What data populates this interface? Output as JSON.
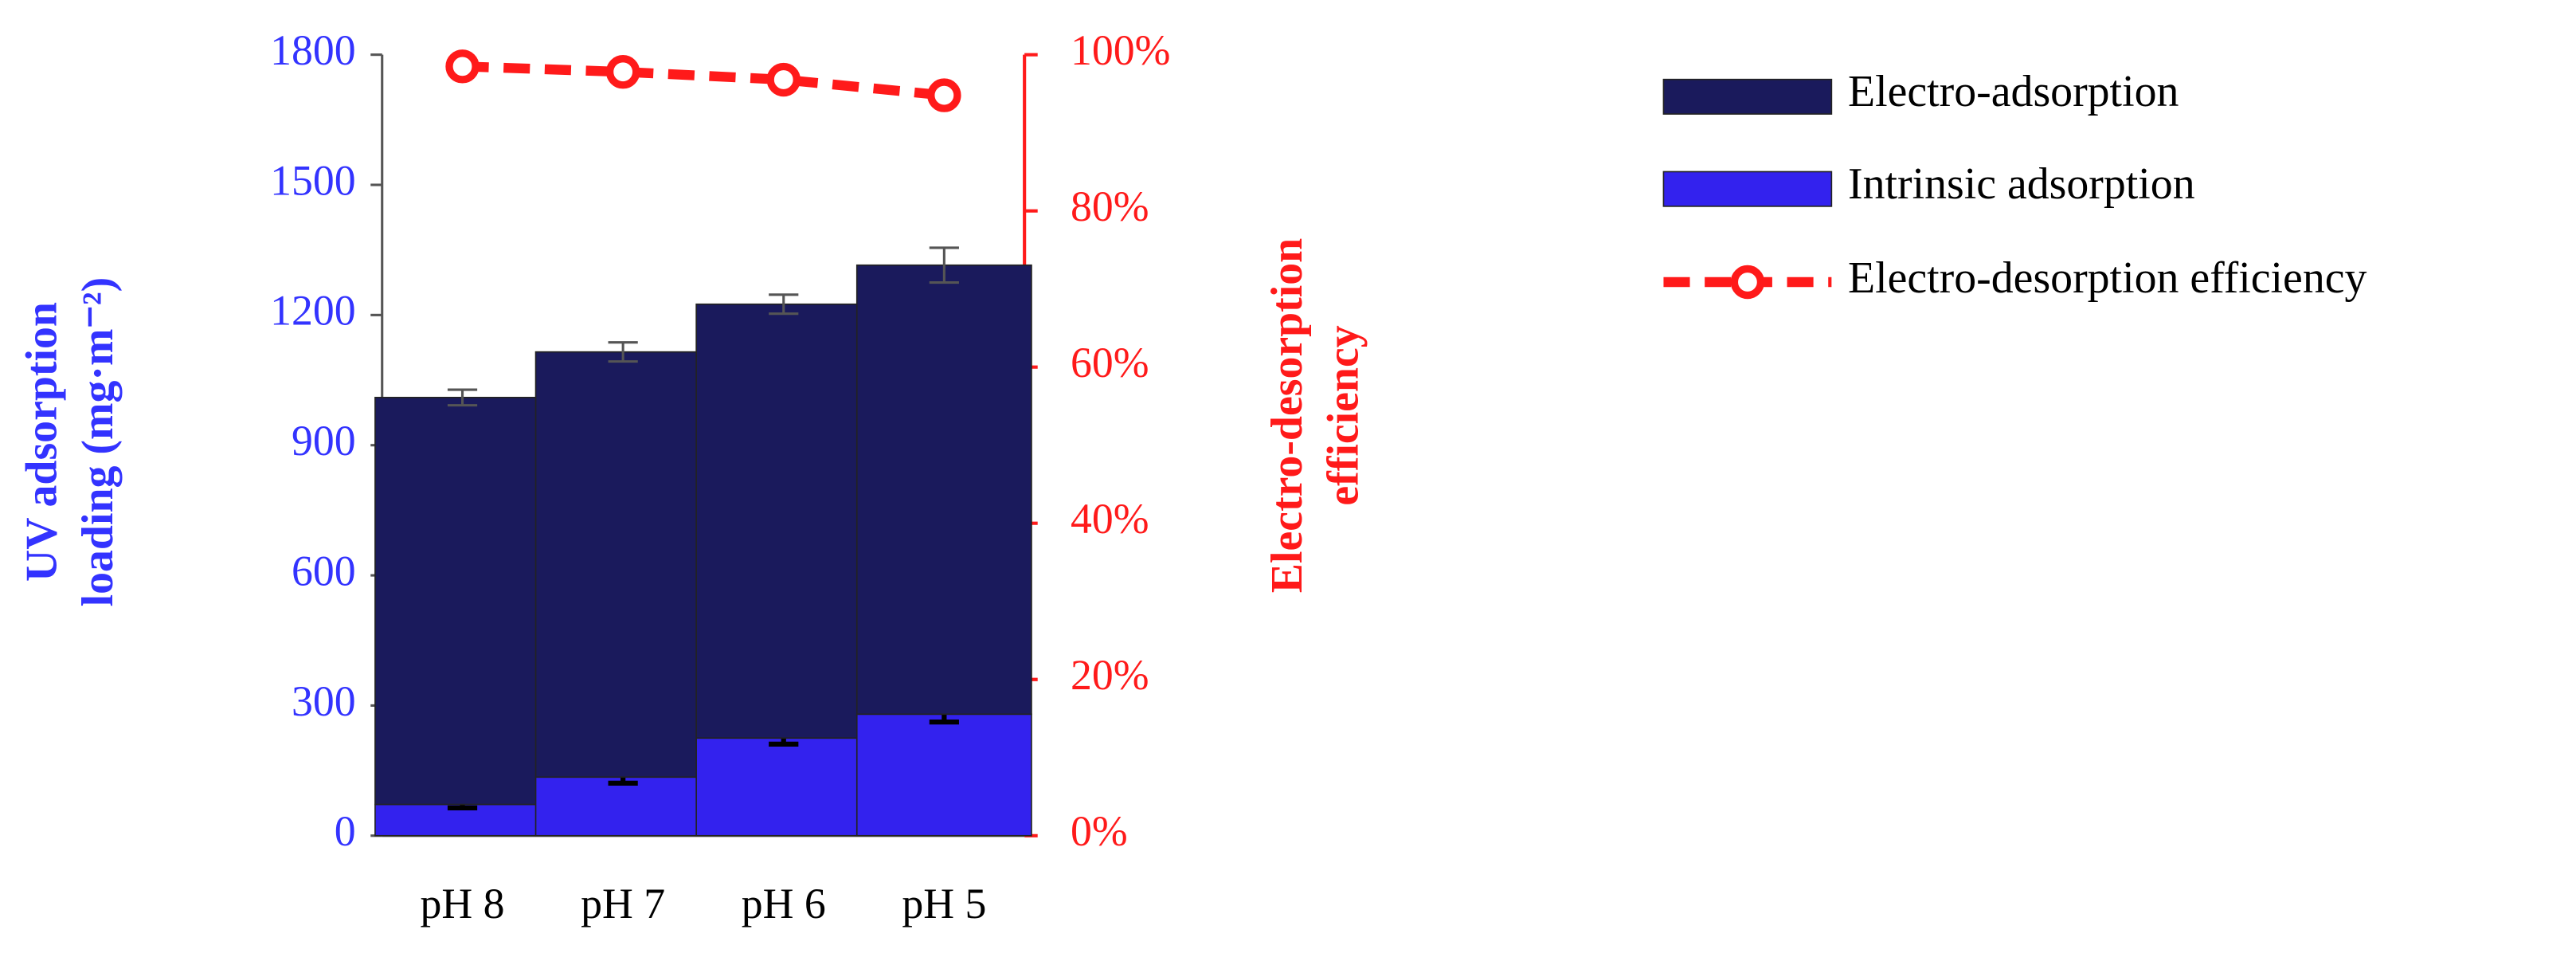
{
  "chart_data": {
    "type": "bar",
    "categories": [
      "pH 8",
      "pH 7",
      "pH 6",
      "pH 5"
    ],
    "ylabel": [
      "UV adsorption",
      "loading (mg·m⁻²)"
    ],
    "y2label": [
      "Electro-desorption",
      "efficiency"
    ],
    "ylim": [
      0,
      1800
    ],
    "yticks": [
      0,
      300,
      600,
      900,
      1200,
      1500,
      1800
    ],
    "y2lim": [
      0,
      100
    ],
    "y2ticks": [
      {
        "value": 0,
        "label": "0%"
      },
      {
        "value": 20,
        "label": "20%"
      },
      {
        "value": 40,
        "label": "40%"
      },
      {
        "value": 60,
        "label": "60%"
      },
      {
        "value": 80,
        "label": "80%"
      },
      {
        "value": 100,
        "label": "100%"
      }
    ],
    "series": [
      {
        "name": "Electro-adsorption",
        "type": "bar",
        "color": "#1a1a5c",
        "values": [
          938,
          980,
          1000,
          1035
        ],
        "errors": [
          18,
          22,
          22,
          40
        ]
      },
      {
        "name": "Intrinsic adsorption",
        "type": "bar",
        "color": "#3322ee",
        "values": [
          72,
          135,
          225,
          280
        ],
        "errors": [
          8,
          14,
          14,
          18
        ]
      },
      {
        "name": "Electro-desorption efficiency",
        "type": "line",
        "axis": "y2",
        "color": "#ff1a1a",
        "values": [
          98.5,
          97.8,
          96.8,
          94.8
        ]
      }
    ]
  }
}
